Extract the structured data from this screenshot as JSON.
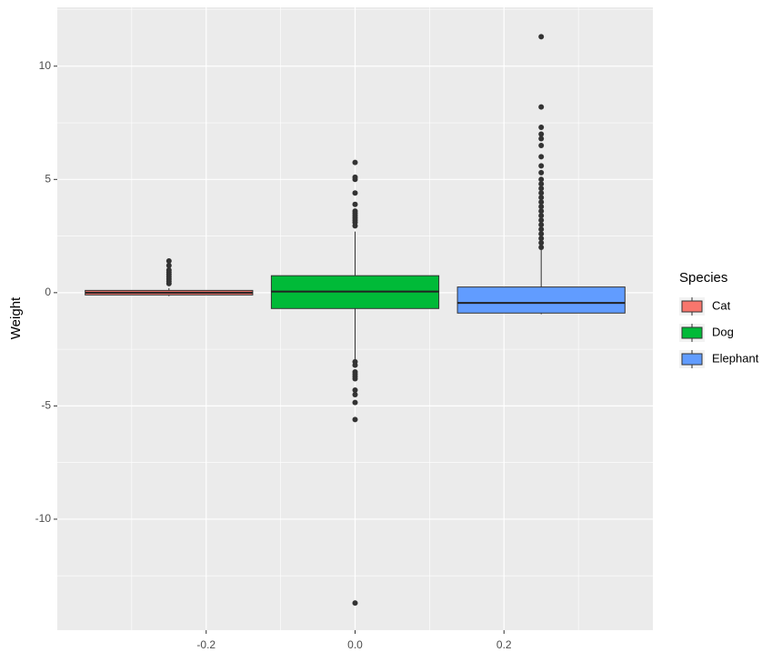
{
  "chart_data": {
    "type": "boxplot",
    "y_label": "Weight",
    "legend_title": "Species",
    "xlim": [
      -0.4,
      0.4
    ],
    "xticks": [
      -0.2,
      {
        "value": 0,
        "label": "0.0"
      },
      0.2
    ],
    "ylim": [
      -14.9,
      12.6
    ],
    "yticks": [
      -10,
      -5,
      0,
      5,
      10
    ],
    "grid": true,
    "legend_position": "right",
    "series": [
      {
        "name": "Cat",
        "color": "#F8766D",
        "x": -0.25,
        "whisker_low": -0.15,
        "q1": -0.1,
        "median": 0,
        "q3": 0.1,
        "whisker_high": 0.2,
        "outliers": [
          0.4,
          0.5,
          0.6,
          0.7,
          0.8,
          0.9,
          1.0,
          1.2,
          1.4
        ]
      },
      {
        "name": "Dog",
        "color": "#00BA38",
        "x": 0,
        "whisker_low": -2.95,
        "q1": -0.7,
        "median": 0.05,
        "q3": 0.75,
        "whisker_high": 2.7,
        "outliers": [
          2.95,
          3.1,
          3.2,
          3.3,
          3.4,
          3.5,
          3.6,
          3.9,
          4.4,
          5.0,
          5.1,
          5.75,
          -3.05,
          -3.2,
          -3.5,
          -3.6,
          -3.7,
          -3.8,
          -4.3,
          -4.5,
          -4.85,
          -5.6,
          -13.7
        ]
      },
      {
        "name": "Elephant",
        "color": "#619CFF",
        "x": 0.25,
        "whisker_low": -0.95,
        "q1": -0.9,
        "median": -0.45,
        "q3": 0.25,
        "whisker_high": 1.9,
        "outliers": [
          2.0,
          2.2,
          2.4,
          2.6,
          2.8,
          3.0,
          3.2,
          3.4,
          3.6,
          3.8,
          4.0,
          4.2,
          4.4,
          4.6,
          4.8,
          5.0,
          5.3,
          5.6,
          6.0,
          6.5,
          6.8,
          7.0,
          7.3,
          8.2,
          11.3
        ]
      }
    ]
  }
}
